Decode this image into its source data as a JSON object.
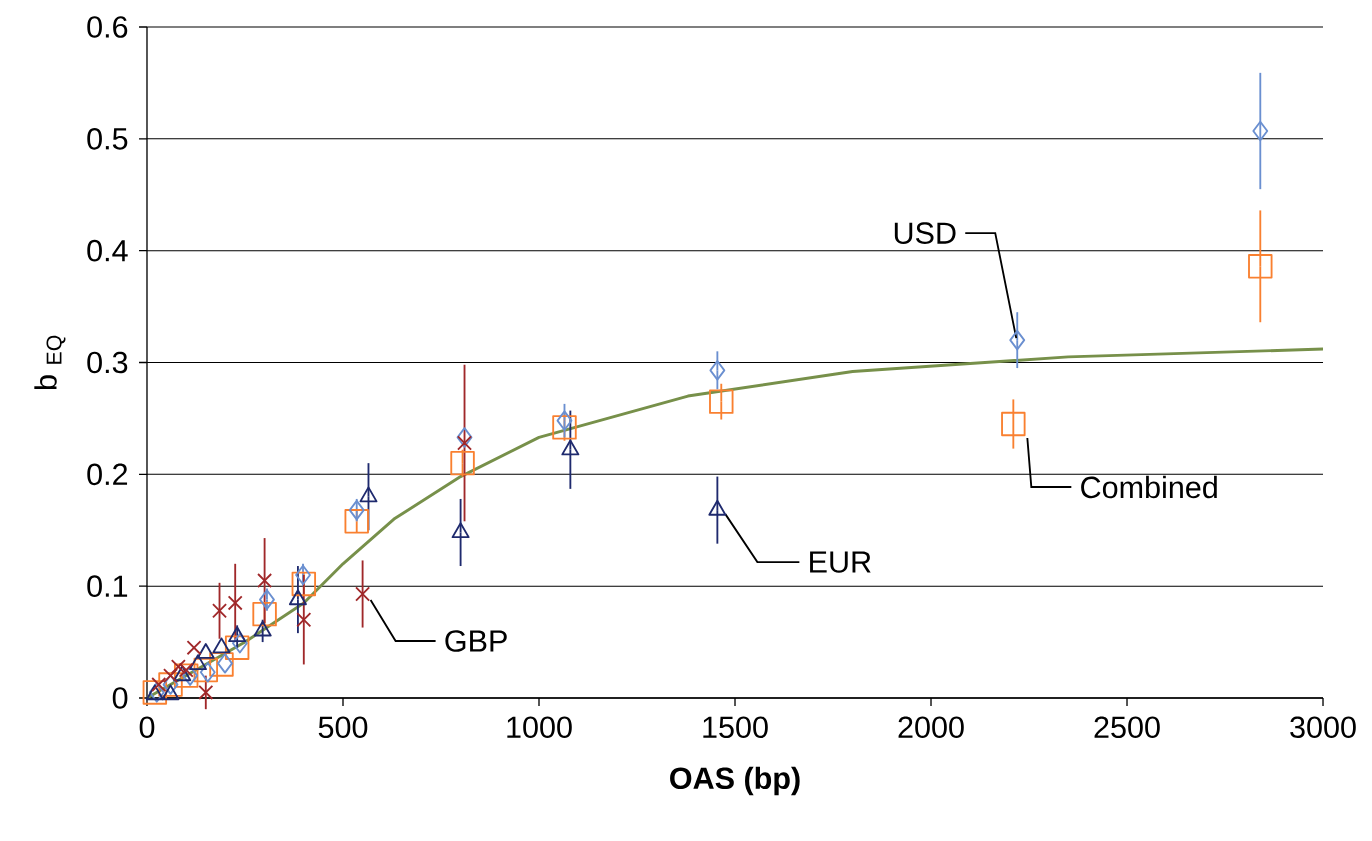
{
  "chart_data": {
    "type": "scatter",
    "xlabel": "OAS (bp)",
    "ylabel": "b $_{EQ}$",
    "xlim": [
      0,
      3000
    ],
    "xticks": [
      0,
      500,
      1000,
      1500,
      2000,
      2500,
      3000
    ],
    "ylim": [
      0,
      0.6
    ],
    "yticks": [
      0,
      0.1,
      0.2,
      0.3,
      0.4,
      0.5,
      0.6
    ],
    "grid": "y",
    "series": [
      {
        "type": "line",
        "color": "#77904a",
        "marker": "none",
        "x": [
          0,
          250,
          400,
          500,
          630,
          800,
          1000,
          1380,
          1800,
          2350,
          3000
        ],
        "values": [
          0,
          0.05,
          0.085,
          0.12,
          0.16,
          0.198,
          0.233,
          0.27,
          0.292,
          0.305,
          0.312
        ]
      },
      {
        "color": "#f98030",
        "marker": "square",
        "x": [
          20,
          60,
          100,
          150,
          190,
          230,
          300,
          400,
          535,
          805,
          1065,
          1465,
          2210,
          2840
        ],
        "values": [
          0.005,
          0.012,
          0.02,
          0.025,
          0.03,
          0.045,
          0.075,
          0.102,
          0.158,
          0.21,
          0.242,
          0.265,
          0.245,
          0.386
        ],
        "errors": [
          null,
          null,
          null,
          null,
          null,
          null,
          0.01,
          0.01,
          0.01,
          0.012,
          0.012,
          0.016,
          0.022,
          0.05
        ]
      },
      {
        "color": "#6a8fd0",
        "marker": "diamond",
        "x": [
          25,
          60,
          110,
          155,
          199,
          237,
          306,
          398,
          535,
          810,
          1065,
          1455,
          2220,
          2840
        ],
        "values": [
          0.005,
          0.012,
          0.02,
          0.023,
          0.031,
          0.049,
          0.088,
          0.11,
          0.168,
          0.233,
          0.248,
          0.293,
          0.32,
          0.507
        ],
        "errors": [
          null,
          null,
          null,
          null,
          null,
          null,
          0.01,
          0.01,
          0.01,
          null,
          0.015,
          0.017,
          0.025,
          0.052
        ]
      },
      {
        "color": "#1f2a6e",
        "marker": "triangle",
        "x": [
          20,
          60,
          90,
          130,
          150,
          190,
          230,
          295,
          385,
          565,
          800,
          1080,
          1455
        ],
        "values": [
          0.003,
          0.003,
          0.02,
          0.03,
          0.04,
          0.045,
          0.055,
          0.06,
          0.088,
          0.18,
          0.148,
          0.222,
          0.168
        ],
        "errors": [
          null,
          null,
          null,
          null,
          null,
          null,
          0.01,
          0.01,
          0.03,
          0.03,
          0.03,
          0.035,
          0.03
        ]
      },
      {
        "color": "#a0282a",
        "marker": "cross",
        "x": [
          30,
          60,
          80,
          100,
          120,
          150,
          185,
          225,
          300,
          400,
          550,
          810
        ],
        "values": [
          0.012,
          0.02,
          0.028,
          0.025,
          0.045,
          0.005,
          0.078,
          0.085,
          0.105,
          0.07,
          0.093,
          0.228
        ],
        "errors": [
          null,
          null,
          null,
          null,
          null,
          0.015,
          0.025,
          0.035,
          0.038,
          0.04,
          0.03,
          0.07
        ]
      }
    ],
    "annotations": [
      {
        "text": "USD",
        "x": 2220,
        "y": 0.32
      },
      {
        "text": "GBP",
        "x": 550,
        "y": 0.093
      },
      {
        "text": "EUR",
        "x": 1455,
        "y": 0.168
      },
      {
        "text": "Combined",
        "x": 2210,
        "y": 0.245
      }
    ]
  }
}
